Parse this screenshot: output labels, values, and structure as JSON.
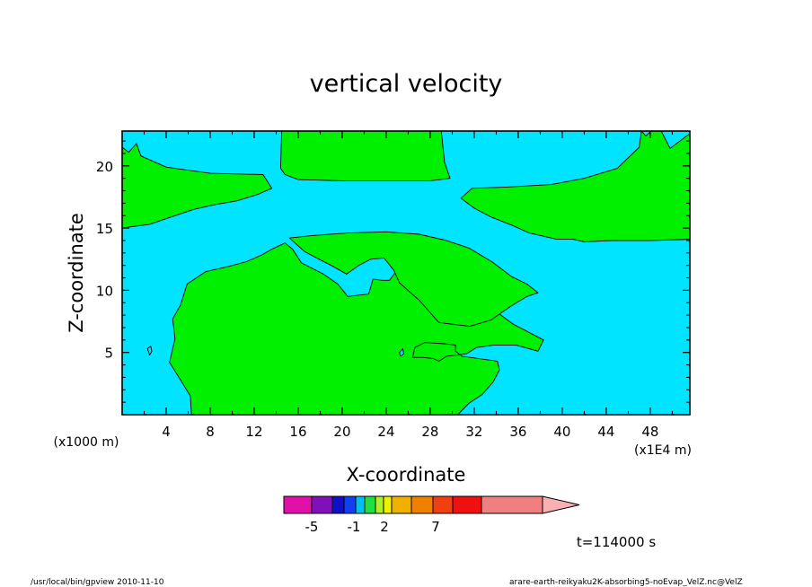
{
  "chart_data": {
    "type": "heatmap",
    "title": "vertical velocity",
    "xlabel": "X-coordinate",
    "ylabel": "Z-coordinate",
    "x_unit_label": "(x1E4 m)",
    "y_unit_label": "(x1000 m)",
    "xlim": [
      0,
      51.6
    ],
    "ylim": [
      0,
      22.8
    ],
    "x_ticks": [
      "4",
      "8",
      "12",
      "16",
      "20",
      "24",
      "28",
      "32",
      "36",
      "40",
      "44",
      "48"
    ],
    "y_ticks": [
      "5",
      "10",
      "15",
      "20"
    ],
    "regions": [
      {
        "fill": "green",
        "points": [
          [
            0,
            15.0
          ],
          [
            0.8,
            15.1
          ],
          [
            2.5,
            15.3
          ],
          [
            4.5,
            15.9
          ],
          [
            6.5,
            16.5
          ],
          [
            8.5,
            16.9
          ],
          [
            10.5,
            17.2
          ],
          [
            12.3,
            17.7
          ],
          [
            13.6,
            18.2
          ],
          [
            12.8,
            19.3
          ],
          [
            8,
            19.4
          ],
          [
            4,
            19.9
          ],
          [
            1.7,
            20.8
          ],
          [
            1.3,
            21.8
          ],
          [
            0.6,
            21.1
          ],
          [
            0,
            21.5
          ]
        ]
      },
      {
        "fill": "green",
        "points": [
          [
            14.5,
            22.8
          ],
          [
            14.4,
            19.8
          ],
          [
            14.8,
            19.3
          ],
          [
            16,
            18.9
          ],
          [
            20,
            18.8
          ],
          [
            24,
            18.8
          ],
          [
            28,
            18.8
          ],
          [
            29.8,
            19.0
          ],
          [
            29.3,
            20.3
          ],
          [
            29,
            22.8
          ]
        ]
      },
      {
        "fill": "green",
        "points": [
          [
            51.6,
            14.1
          ],
          [
            48,
            14.0
          ],
          [
            44.5,
            14.0
          ],
          [
            42,
            13.9
          ],
          [
            41,
            14.1
          ],
          [
            39.5,
            14.1
          ],
          [
            37,
            14.6
          ],
          [
            35.5,
            15.2
          ],
          [
            33.5,
            15.9
          ],
          [
            32,
            16.6
          ],
          [
            30.8,
            17.4
          ],
          [
            31.8,
            18.2
          ],
          [
            35,
            18.3
          ],
          [
            39,
            18.5
          ],
          [
            42,
            19.0
          ],
          [
            45,
            19.8
          ],
          [
            47,
            21.5
          ],
          [
            47.2,
            22.8
          ],
          [
            47.6,
            22.4
          ],
          [
            48.1,
            22.8
          ],
          [
            49,
            22.8
          ],
          [
            49.8,
            21.4
          ],
          [
            51.6,
            22.6
          ]
        ]
      },
      {
        "fill": "green",
        "points": [
          [
            6.3,
            0
          ],
          [
            6.2,
            1.5
          ],
          [
            5.3,
            2.8
          ],
          [
            4.3,
            4.2
          ],
          [
            4.8,
            6.1
          ],
          [
            4.6,
            7.7
          ],
          [
            5.3,
            8.8
          ],
          [
            5.9,
            10.5
          ],
          [
            7.6,
            11.5
          ],
          [
            9.6,
            11.9
          ],
          [
            11.3,
            12.3
          ],
          [
            12.6,
            12.8
          ],
          [
            13.6,
            13.3
          ],
          [
            14.8,
            13.8
          ],
          [
            15.5,
            13.3
          ],
          [
            16.3,
            12.2
          ],
          [
            18.3,
            11.3
          ],
          [
            19.6,
            10.5
          ],
          [
            20.5,
            9.5
          ],
          [
            22.4,
            9.7
          ],
          [
            22.8,
            10.9
          ],
          [
            23.6,
            10.8
          ],
          [
            24.3,
            10.8
          ],
          [
            26.7,
            13.6
          ],
          [
            25.6,
            11.0
          ],
          [
            26.2,
            10.3
          ],
          [
            28.5,
            9.7
          ],
          [
            33.5,
            8.6
          ],
          [
            35.5,
            7.3
          ],
          [
            38.3,
            6.0
          ],
          [
            37.8,
            5.1
          ],
          [
            35.8,
            5.6
          ],
          [
            33.8,
            5.6
          ],
          [
            32.2,
            5.4
          ],
          [
            31.3,
            4.9
          ],
          [
            29.5,
            4.7
          ],
          [
            28.8,
            4.3
          ],
          [
            28.3,
            4.5
          ],
          [
            27.3,
            4.6
          ],
          [
            26.4,
            4.6
          ],
          [
            26.6,
            5.4
          ],
          [
            27.5,
            5.8
          ],
          [
            29.3,
            5.7
          ],
          [
            30.3,
            5.6
          ],
          [
            30.3,
            5.1
          ],
          [
            30.9,
            4.7
          ],
          [
            34.1,
            4.3
          ],
          [
            34.3,
            3.6
          ],
          [
            33.7,
            2.6
          ],
          [
            32.7,
            1.6
          ],
          [
            31.5,
            0.9
          ],
          [
            30.5,
            0
          ]
        ]
      },
      {
        "fill": "green",
        "points": [
          [
            15.2,
            14.2
          ],
          [
            17.3,
            14.4
          ],
          [
            20.5,
            14.6
          ],
          [
            24,
            14.7
          ],
          [
            27,
            14.5
          ],
          [
            29.5,
            14.0
          ],
          [
            31.5,
            13.4
          ],
          [
            33.6,
            12.3
          ],
          [
            35.4,
            11.1
          ],
          [
            36.8,
            10.5
          ],
          [
            37.8,
            9.8
          ],
          [
            36.8,
            9.5
          ],
          [
            35.3,
            8.7
          ],
          [
            33.5,
            7.6
          ],
          [
            31.6,
            7.1
          ],
          [
            28.8,
            7.4
          ],
          [
            27.0,
            9.2
          ],
          [
            25.2,
            10.6
          ],
          [
            24.7,
            11.6
          ],
          [
            23.8,
            12.6
          ],
          [
            22.6,
            12.5
          ],
          [
            21.5,
            12.0
          ],
          [
            20.4,
            11.3
          ],
          [
            19.0,
            12.0
          ],
          [
            17.9,
            12.5
          ],
          [
            16.6,
            13.1
          ]
        ]
      },
      {
        "fill": "cyan",
        "points": [
          [
            2.3,
            5.3
          ],
          [
            2.6,
            5.5
          ],
          [
            2.7,
            5.1
          ],
          [
            2.5,
            4.8
          ]
        ]
      },
      {
        "fill": "cyan",
        "points": [
          [
            25.2,
            5.0
          ],
          [
            25.5,
            5.3
          ],
          [
            25.6,
            4.9
          ],
          [
            25.3,
            4.7
          ]
        ]
      }
    ],
    "colorbar": {
      "tick_labels": [
        "-5",
        "-1",
        "2",
        "7"
      ],
      "colors": [
        "#e010a8",
        "#8010b8",
        "#1010c8",
        "#1040f0",
        "#00c0f0",
        "#20e040",
        "#b0f020",
        "#f0f000",
        "#f0b000",
        "#f08000",
        "#f04010",
        "#f01010",
        "#f08080",
        "#f8b0b0"
      ]
    },
    "time_label": "t=114000 s",
    "footer_left": "/usr/local/bin/gpview  2010-11-10",
    "footer_right": "arare-earth-reikyaku2K-absorbing5-noEvap_VelZ.nc@VelZ"
  }
}
